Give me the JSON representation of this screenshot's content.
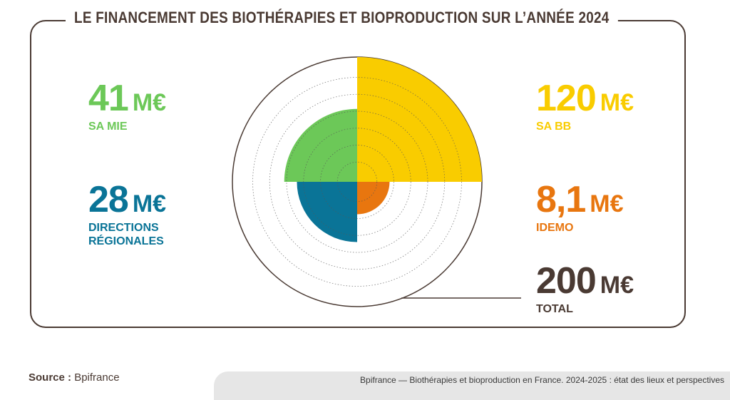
{
  "title": "LE FINANCEMENT DES BIOTHÉRAPIES ET BIOPRODUCTION SUR L’ANNÉE 2024",
  "stats": {
    "sa_mie": {
      "value": "41",
      "unit": "M€",
      "label": "SA MIE"
    },
    "directions": {
      "value": "28",
      "unit": "M€",
      "label": "DIRECTIONS RÉGIONALES"
    },
    "sa_bb": {
      "value": "120",
      "unit": "M€",
      "label": "SA BB"
    },
    "idemo": {
      "value": "8,1",
      "unit": "M€",
      "label": "IDEMO"
    },
    "total": {
      "value": "200",
      "unit": "M€",
      "label": "TOTAL"
    }
  },
  "chart_data": {
    "type": "polar-area",
    "title": "Le financement des biothérapies et bioproduction sur l’année 2024",
    "unit": "M€",
    "total": 200,
    "series": [
      {
        "name": "SA BB",
        "value": 120,
        "quadrant": "top-right",
        "color": "#f9cc00"
      },
      {
        "name": "SA MIE",
        "value": 41,
        "quadrant": "top-left",
        "color": "#6cc858"
      },
      {
        "name": "Directions régionales",
        "value": 28,
        "quadrant": "bottom-left",
        "color": "#0a7497"
      },
      {
        "name": "IDEMO",
        "value": 8.1,
        "quadrant": "bottom-right",
        "color": "#e8760f"
      }
    ]
  },
  "footer": {
    "source_label": "Source :",
    "source_value": "Bpifrance",
    "reference": "Bpifrance — Biothérapies et bioproduction en France. 2024-2025 : état des lieux et perspectives"
  }
}
